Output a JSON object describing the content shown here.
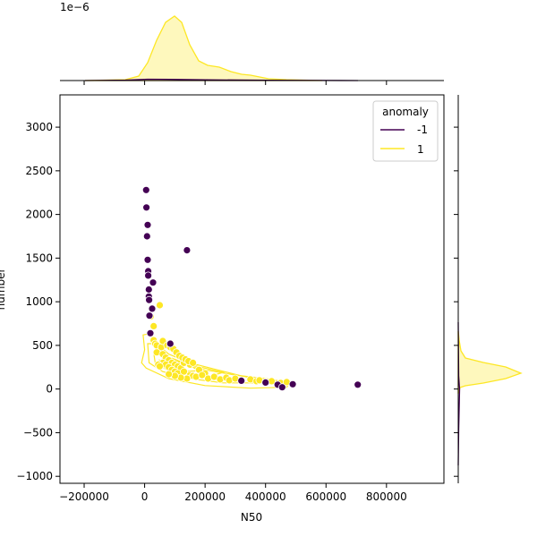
{
  "chart_data": {
    "type": "scatter",
    "xlabel": "N50",
    "ylabel": "number",
    "xlim": [
      -280000,
      990000
    ],
    "ylim": [
      -1080,
      3370
    ],
    "xticks": [
      -200000,
      0,
      200000,
      400000,
      600000,
      800000
    ],
    "xtick_labels": [
      "−200000",
      "0",
      "200000",
      "400000",
      "600000",
      "800000"
    ],
    "yticks": [
      -1000,
      -500,
      0,
      500,
      1000,
      1500,
      2000,
      2500,
      3000
    ],
    "ytick_labels": [
      "−1000",
      "−500",
      "0",
      "500",
      "1000",
      "1500",
      "2000",
      "2500",
      "3000"
    ],
    "top_marginal_offset_label": "1e−6",
    "legend": {
      "title": "anomaly",
      "placement": "top-right",
      "entries": [
        {
          "label": "-1",
          "color": "#440154"
        },
        {
          "label": "1",
          "color": "#fde725"
        }
      ]
    },
    "series": [
      {
        "name": "-1",
        "color": "#440154",
        "x": [
          5000,
          6000,
          8000,
          10000,
          10000,
          12000,
          12000,
          14000,
          14000,
          15000,
          16000,
          19000,
          28000,
          25000,
          85000,
          140000,
          320000,
          400000,
          440000,
          455000,
          490000,
          705000
        ],
        "y": [
          2280,
          2080,
          1750,
          1880,
          1480,
          1350,
          1300,
          1140,
          1060,
          1020,
          840,
          640,
          1220,
          920,
          520,
          1590,
          95,
          75,
          50,
          20,
          55,
          50
        ]
      },
      {
        "name": "1",
        "color": "#fde725",
        "x": [
          20000,
          30000,
          30000,
          35000,
          40000,
          55000,
          50000,
          40000,
          60000,
          70000,
          80000,
          90000,
          100000,
          110000,
          120000,
          60000,
          70000,
          80000,
          45000,
          50000,
          90000,
          100000,
          110000,
          130000,
          150000,
          160000,
          170000,
          140000,
          120000,
          100000,
          80000,
          200000,
          210000,
          230000,
          250000,
          270000,
          280000,
          300000,
          320000,
          350000,
          370000,
          380000,
          400000,
          420000,
          450000,
          470000,
          130000,
          150000,
          180000,
          190000,
          60000,
          75000,
          85000,
          95000,
          105000,
          115000,
          125000,
          135000,
          145000,
          160000
        ],
        "y": [
          830,
          720,
          560,
          520,
          500,
          480,
          960,
          420,
          400,
          360,
          330,
          300,
          280,
          260,
          240,
          300,
          280,
          250,
          280,
          260,
          220,
          200,
          180,
          200,
          160,
          150,
          140,
          120,
          130,
          150,
          170,
          180,
          120,
          140,
          110,
          130,
          100,
          120,
          90,
          110,
          90,
          100,
          80,
          90,
          70,
          80,
          300,
          280,
          220,
          160,
          550,
          500,
          480,
          460,
          420,
          380,
          360,
          340,
          320,
          300
        ]
      }
    ],
    "kde_contours": "series 1 density contours around main cluster",
    "top_marginal": "KDE of N50 per anomaly class",
    "right_marginal": "KDE of number per anomaly class"
  }
}
